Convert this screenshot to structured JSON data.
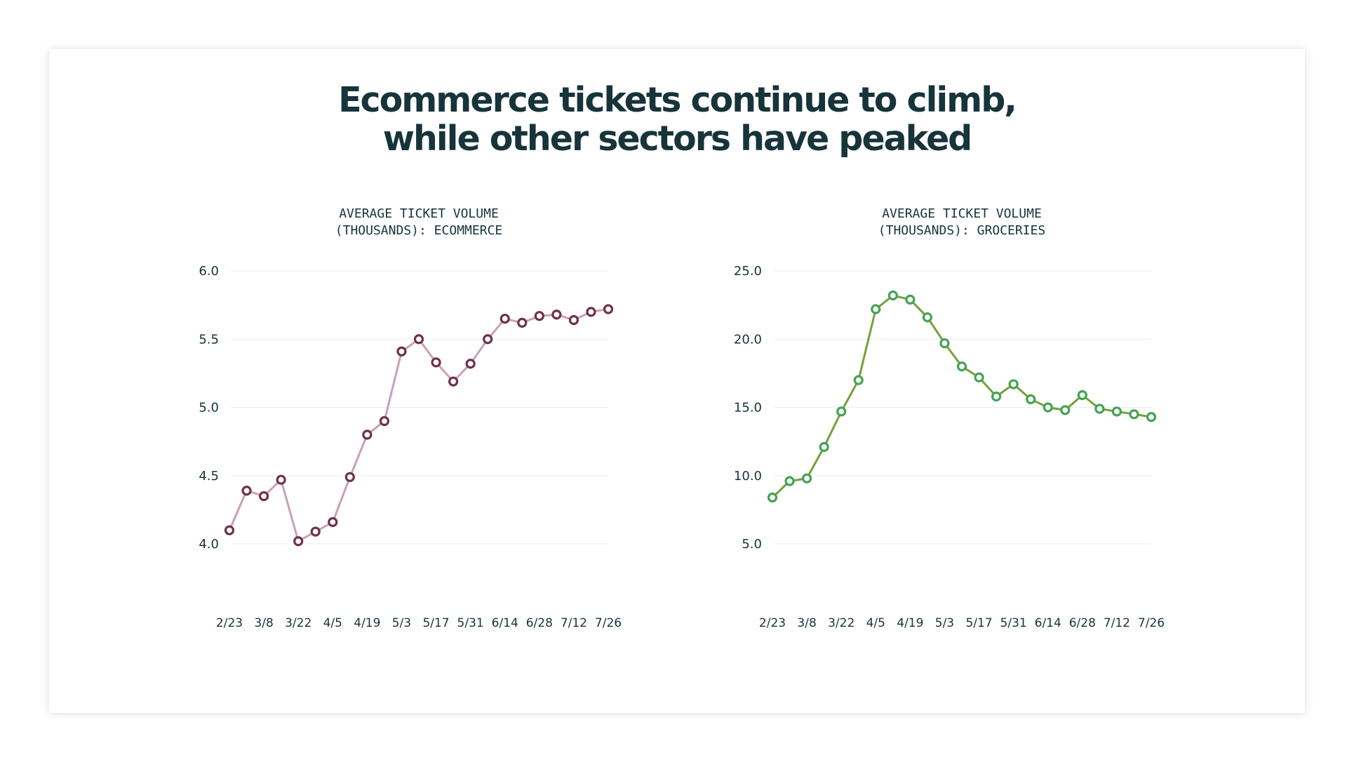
{
  "page_title_line1": "Ecommerce tickets continue to climb,",
  "page_title_line2": "while other sectors have peaked",
  "chart_data": [
    {
      "type": "line",
      "title_line1": "AVERAGE TICKET VOLUME",
      "title_line2": "(THOUSANDS): ECOMMERCE",
      "x": [
        "2/23",
        "3/1",
        "3/8",
        "3/15",
        "3/22",
        "3/29",
        "4/5",
        "4/12",
        "4/19",
        "4/26",
        "5/3",
        "5/10",
        "5/17",
        "5/24",
        "5/31",
        "6/7",
        "6/14",
        "6/21",
        "6/28",
        "7/5",
        "7/12",
        "7/19",
        "7/26"
      ],
      "x_tick_labels": [
        "2/23",
        "3/8",
        "3/22",
        "4/5",
        "4/19",
        "5/3",
        "5/17",
        "5/31",
        "6/14",
        "6/28",
        "7/12",
        "7/26"
      ],
      "y_tick_labels": [
        "4.0",
        "4.5",
        "5.0",
        "5.5",
        "6.0"
      ],
      "values": [
        4.1,
        4.39,
        4.35,
        4.47,
        4.02,
        4.09,
        4.16,
        4.49,
        4.8,
        4.9,
        5.41,
        5.5,
        5.33,
        5.19,
        5.32,
        5.5,
        5.65,
        5.62,
        5.67,
        5.68,
        5.64,
        5.7,
        5.72
      ],
      "ylim": [
        4.0,
        6.0
      ],
      "colors": {
        "line": "#c9a0b7",
        "marker": "#6e3148"
      },
      "grid": true
    },
    {
      "type": "line",
      "title_line1": "AVERAGE TICKET VOLUME",
      "title_line2": "(THOUSANDS): GROCERIES",
      "x": [
        "2/23",
        "3/1",
        "3/8",
        "3/15",
        "3/22",
        "3/29",
        "4/5",
        "4/12",
        "4/19",
        "4/26",
        "5/3",
        "5/10",
        "5/17",
        "5/24",
        "5/31",
        "6/7",
        "6/14",
        "6/21",
        "6/28",
        "7/5",
        "7/12",
        "7/19",
        "7/26"
      ],
      "x_tick_labels": [
        "2/23",
        "3/8",
        "3/22",
        "4/5",
        "4/19",
        "5/3",
        "5/17",
        "5/31",
        "6/14",
        "6/28",
        "7/12",
        "7/26"
      ],
      "y_tick_labels": [
        "5.0",
        "10.0",
        "15.0",
        "20.0",
        "25.0"
      ],
      "values": [
        8.4,
        9.6,
        9.8,
        12.1,
        14.7,
        17.0,
        22.2,
        23.2,
        22.9,
        21.6,
        19.7,
        18.0,
        17.2,
        15.8,
        16.7,
        15.6,
        15.0,
        14.8,
        15.9,
        14.9,
        14.7,
        14.5,
        14.3
      ],
      "ylim": [
        5.0,
        25.0
      ],
      "colors": {
        "line": "#76a13a",
        "marker": "#43a354"
      },
      "grid": true
    }
  ]
}
